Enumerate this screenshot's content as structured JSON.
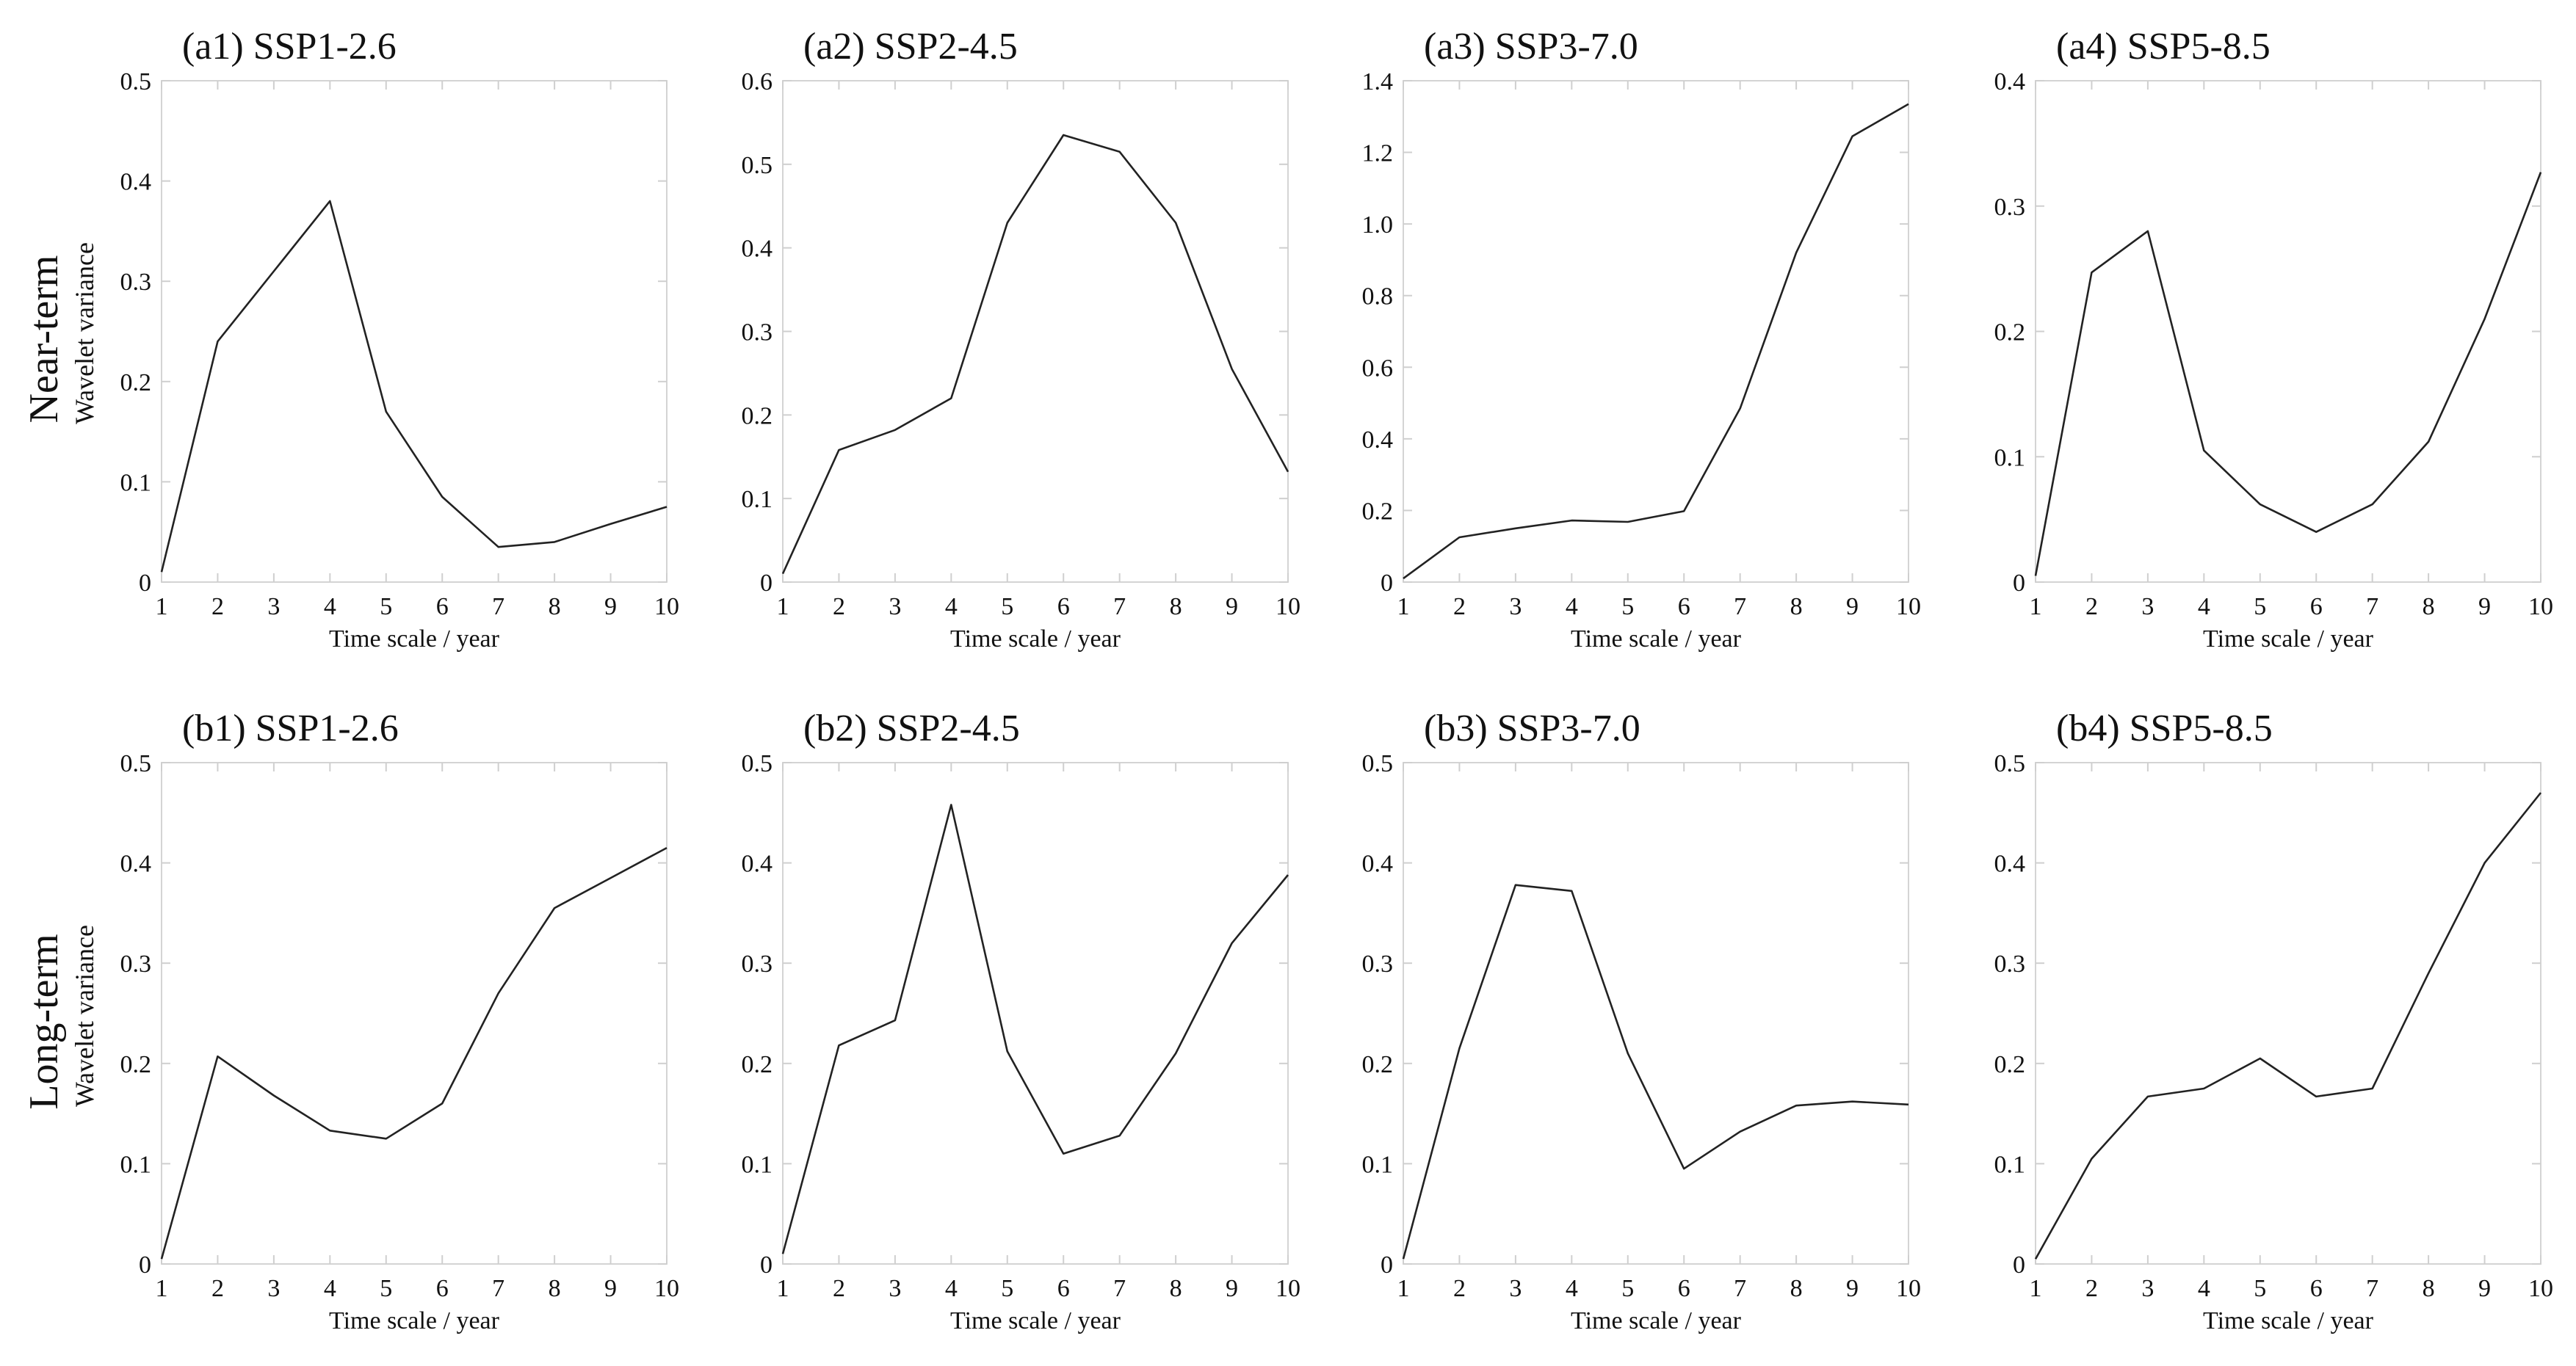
{
  "rows": [
    {
      "title": "Near-term",
      "ylabel": "Wavelet variance"
    },
    {
      "title": "Long-term",
      "ylabel": "Wavelet variance"
    }
  ],
  "chart_data": [
    {
      "type": "line",
      "title": "(a1) SSP1-2.6",
      "xlabel": "Time scale / year",
      "ylabel": "Wavelet variance",
      "x": [
        1,
        2,
        3,
        4,
        5,
        6,
        7,
        8,
        9,
        10
      ],
      "values": [
        0.01,
        0.24,
        0.31,
        0.38,
        0.17,
        0.085,
        0.035,
        0.04,
        0.058,
        0.075
      ],
      "ylim": [
        0,
        0.5
      ],
      "yticks": [
        "0",
        "0.1",
        "0.2",
        "0.3",
        "0.4",
        "0.5"
      ],
      "xticks": [
        "1",
        "2",
        "3",
        "4",
        "5",
        "6",
        "7",
        "8",
        "9",
        "10"
      ]
    },
    {
      "type": "line",
      "title": "(a2) SSP2-4.5",
      "xlabel": "Time scale / year",
      "ylabel": "Wavelet variance",
      "x": [
        1,
        2,
        3,
        4,
        5,
        6,
        7,
        8,
        9,
        10
      ],
      "values": [
        0.01,
        0.158,
        0.182,
        0.22,
        0.43,
        0.535,
        0.515,
        0.43,
        0.255,
        0.132
      ],
      "ylim": [
        0,
        0.6
      ],
      "yticks": [
        "0",
        "0.1",
        "0.2",
        "0.3",
        "0.4",
        "0.5",
        "0.6"
      ],
      "xticks": [
        "1",
        "2",
        "3",
        "4",
        "5",
        "6",
        "7",
        "8",
        "9",
        "10"
      ]
    },
    {
      "type": "line",
      "title": "(a3) SSP3-7.0",
      "xlabel": "Time scale / year",
      "ylabel": "Wavelet variance",
      "x": [
        1,
        2,
        3,
        4,
        5,
        6,
        7,
        8,
        9,
        10
      ],
      "values": [
        0.01,
        0.125,
        0.15,
        0.172,
        0.168,
        0.198,
        0.485,
        0.92,
        1.245,
        1.335
      ],
      "ylim": [
        0,
        1.4
      ],
      "yticks": [
        "0",
        "0.2",
        "0.4",
        "0.6",
        "0.8",
        "1.0",
        "1.2",
        "1.4"
      ],
      "xticks": [
        "1",
        "2",
        "3",
        "4",
        "5",
        "6",
        "7",
        "8",
        "9",
        "10"
      ]
    },
    {
      "type": "line",
      "title": "(a4) SSP5-8.5",
      "xlabel": "Time scale / year",
      "ylabel": "Wavelet variance",
      "x": [
        1,
        2,
        3,
        4,
        5,
        6,
        7,
        8,
        9,
        10
      ],
      "values": [
        0.005,
        0.247,
        0.28,
        0.105,
        0.062,
        0.04,
        0.062,
        0.112,
        0.21,
        0.327
      ],
      "ylim": [
        0,
        0.4
      ],
      "yticks": [
        "0",
        "0.1",
        "0.2",
        "0.3",
        "0.4"
      ],
      "xticks": [
        "1",
        "2",
        "3",
        "4",
        "5",
        "6",
        "7",
        "8",
        "9",
        "10"
      ]
    },
    {
      "type": "line",
      "title": "(b1) SSP1-2.6",
      "xlabel": "Time scale / year",
      "ylabel": "Wavelet variance",
      "x": [
        1,
        2,
        3,
        4,
        5,
        6,
        7,
        8,
        9,
        10
      ],
      "values": [
        0.005,
        0.207,
        0.168,
        0.133,
        0.125,
        0.16,
        0.27,
        0.355,
        0.385,
        0.415
      ],
      "ylim": [
        0,
        0.5
      ],
      "yticks": [
        "0",
        "0.1",
        "0.2",
        "0.3",
        "0.4",
        "0.5"
      ],
      "xticks": [
        "1",
        "2",
        "3",
        "4",
        "5",
        "6",
        "7",
        "8",
        "9",
        "10"
      ]
    },
    {
      "type": "line",
      "title": "(b2) SSP2-4.5",
      "xlabel": "Time scale / year",
      "ylabel": "Wavelet variance",
      "x": [
        1,
        2,
        3,
        4,
        5,
        6,
        7,
        8,
        9,
        10
      ],
      "values": [
        0.01,
        0.218,
        0.243,
        0.458,
        0.212,
        0.11,
        0.128,
        0.21,
        0.32,
        0.388
      ],
      "ylim": [
        0,
        0.5
      ],
      "yticks": [
        "0",
        "0.1",
        "0.2",
        "0.3",
        "0.4",
        "0.5"
      ],
      "xticks": [
        "1",
        "2",
        "3",
        "4",
        "5",
        "6",
        "7",
        "8",
        "9",
        "10"
      ]
    },
    {
      "type": "line",
      "title": "(b3) SSP3-7.0",
      "xlabel": "Time scale / year",
      "ylabel": "Wavelet variance",
      "x": [
        1,
        2,
        3,
        4,
        5,
        6,
        7,
        8,
        9,
        10
      ],
      "values": [
        0.005,
        0.215,
        0.378,
        0.372,
        0.21,
        0.095,
        0.132,
        0.158,
        0.162,
        0.159
      ],
      "ylim": [
        0,
        0.5
      ],
      "yticks": [
        "0",
        "0.1",
        "0.2",
        "0.3",
        "0.4",
        "0.5"
      ],
      "xticks": [
        "1",
        "2",
        "3",
        "4",
        "5",
        "6",
        "7",
        "8",
        "9",
        "10"
      ]
    },
    {
      "type": "line",
      "title": "(b4) SSP5-8.5",
      "xlabel": "Time scale / year",
      "ylabel": "Wavelet variance",
      "x": [
        1,
        2,
        3,
        4,
        5,
        6,
        7,
        8,
        9,
        10
      ],
      "values": [
        0.005,
        0.105,
        0.167,
        0.175,
        0.205,
        0.167,
        0.175,
        0.29,
        0.4,
        0.47
      ],
      "ylim": [
        0,
        0.5
      ],
      "yticks": [
        "0",
        "0.1",
        "0.2",
        "0.3",
        "0.4",
        "0.5"
      ],
      "xticks": [
        "1",
        "2",
        "3",
        "4",
        "5",
        "6",
        "7",
        "8",
        "9",
        "10"
      ]
    }
  ]
}
